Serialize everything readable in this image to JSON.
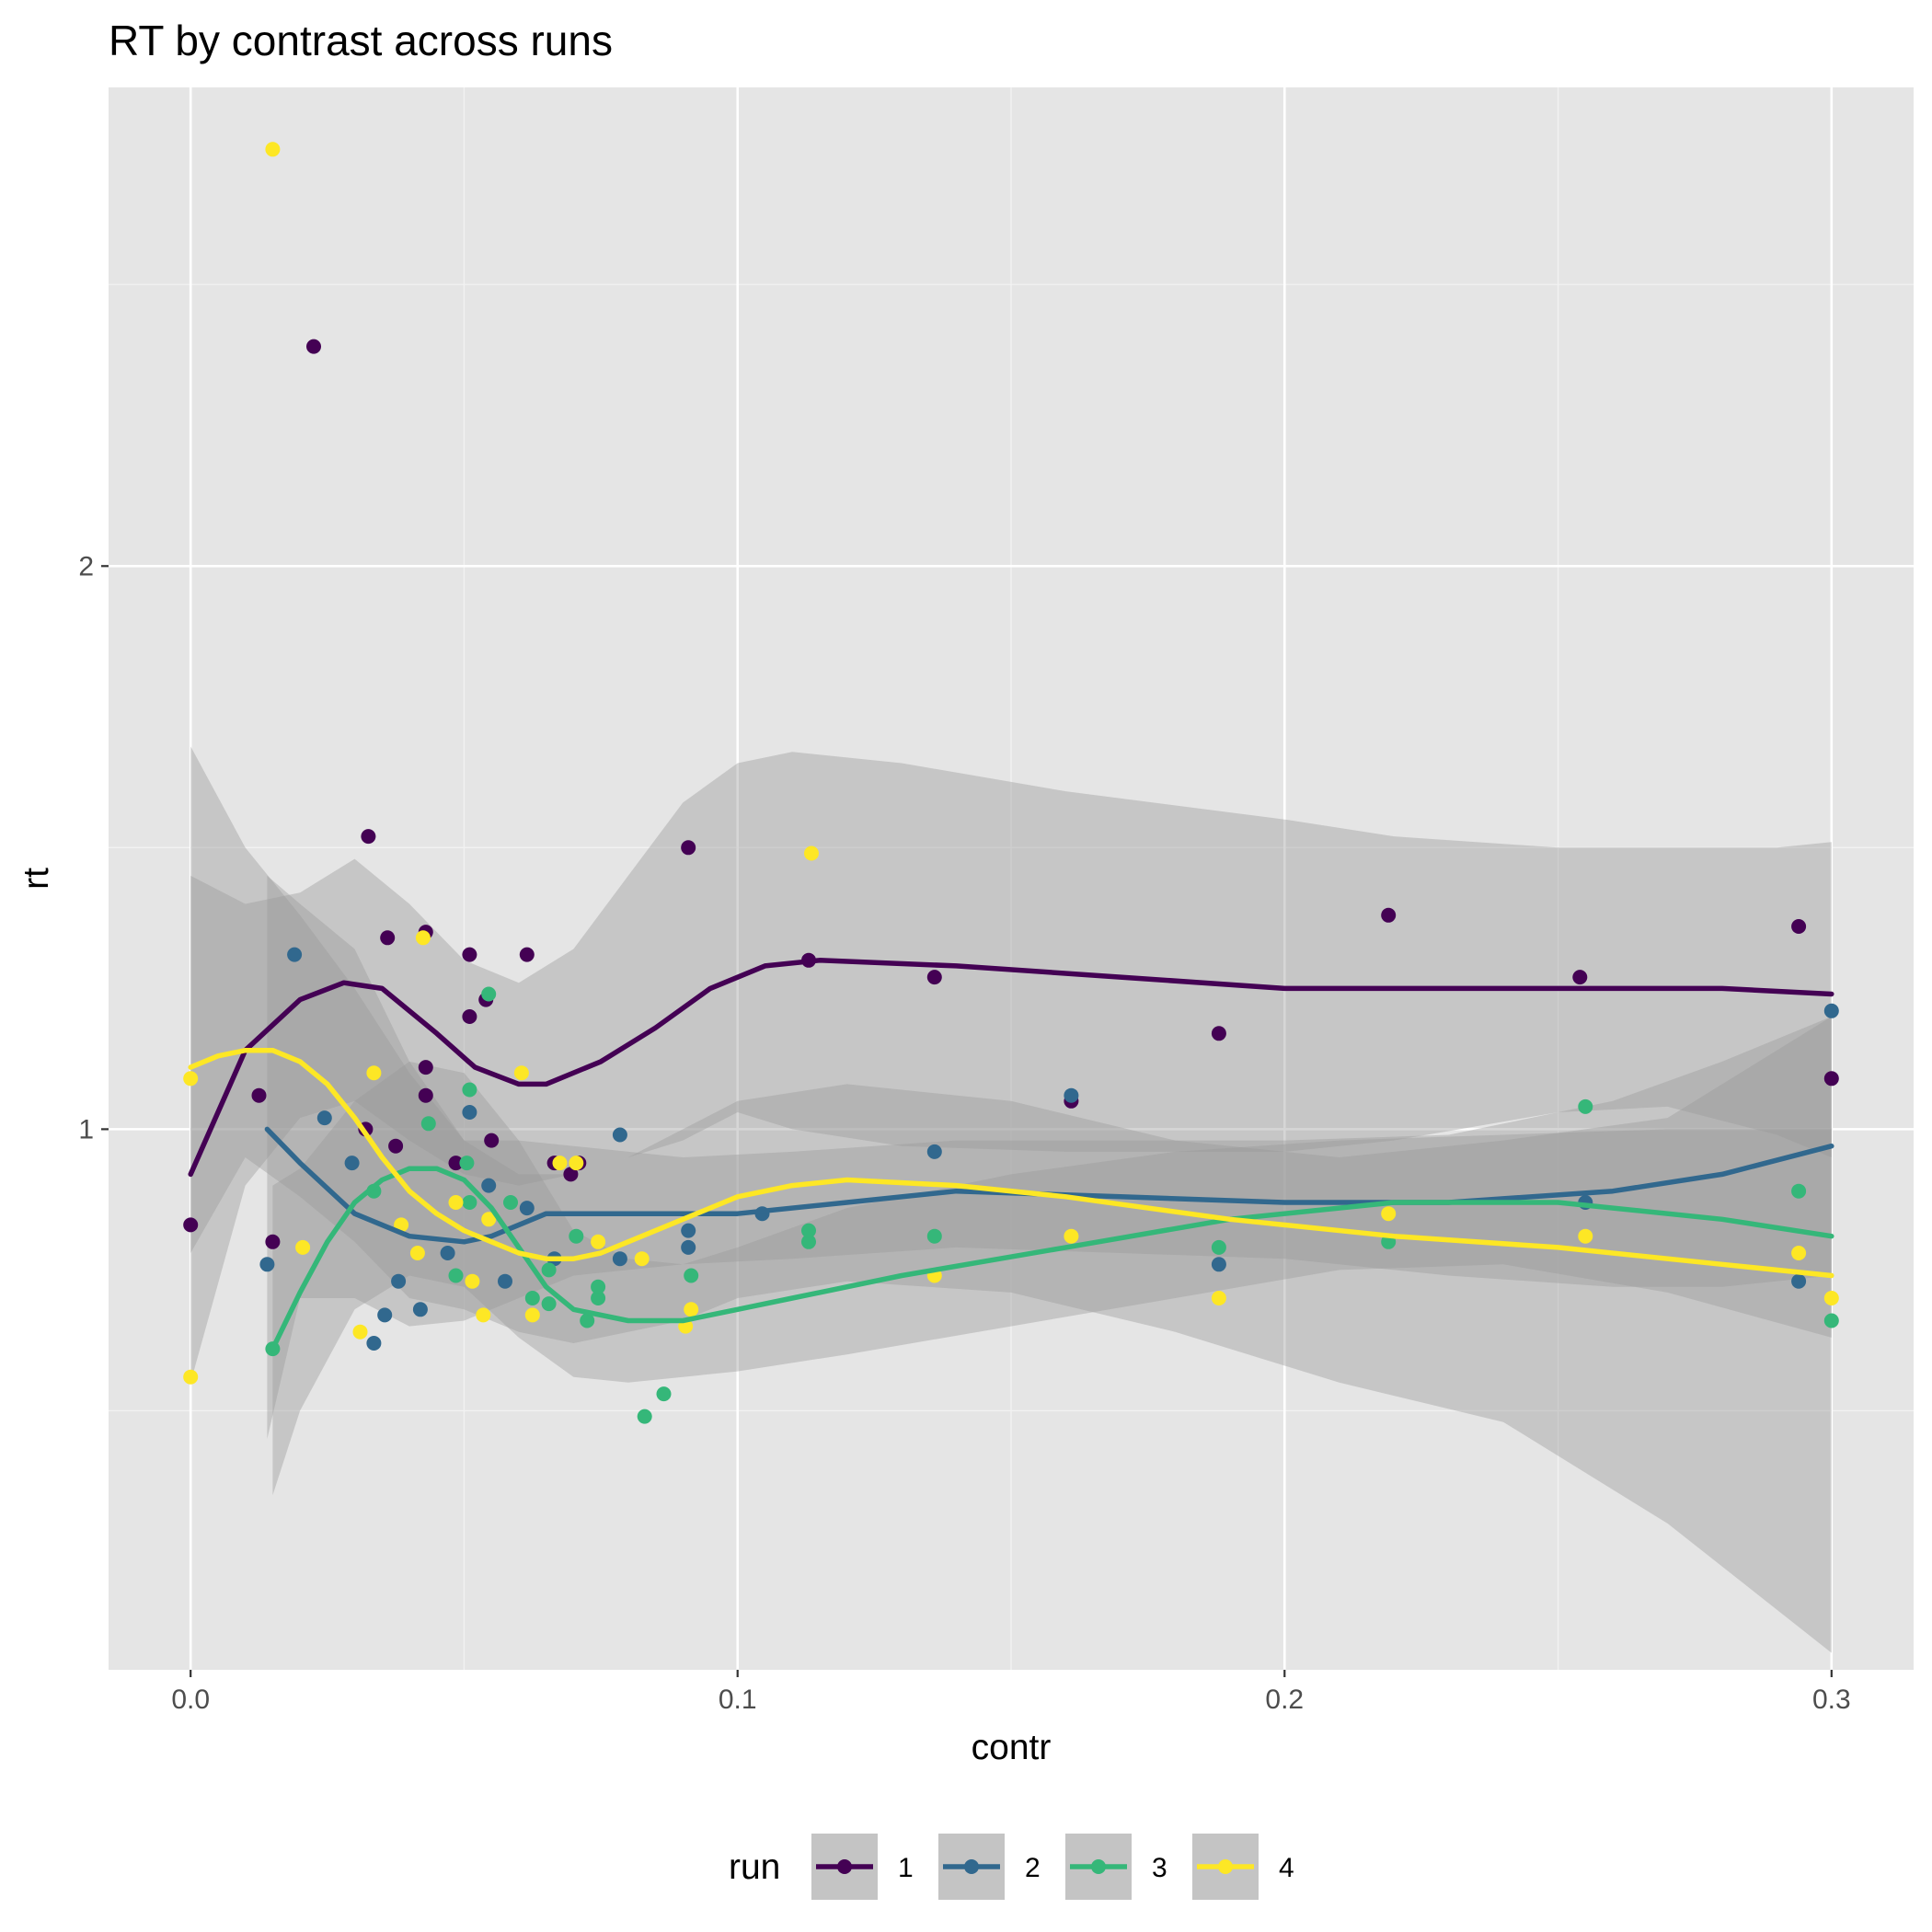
{
  "chart_data": {
    "type": "scatter",
    "title": "RT by contrast across runs",
    "xlabel": "contr",
    "ylabel": "rt",
    "xlim": [
      -0.015,
      0.315
    ],
    "ylim": [
      0.04,
      2.85
    ],
    "x_ticks": [
      {
        "value": 0.0,
        "label": "0.0"
      },
      {
        "value": 0.1,
        "label": "0.1"
      },
      {
        "value": 0.2,
        "label": "0.2"
      },
      {
        "value": 0.3,
        "label": "0.3"
      }
    ],
    "x_minor": [
      0.05,
      0.15,
      0.25
    ],
    "y_ticks": [
      {
        "value": 1,
        "label": "1"
      },
      {
        "value": 2,
        "label": "2"
      }
    ],
    "y_minor": [
      0.5,
      1.5,
      2.5
    ],
    "grid": true,
    "legend": {
      "title": "run",
      "position": "bottom"
    },
    "series": [
      {
        "name": "1",
        "color": "#440154",
        "points": [
          [
            0.0,
            0.83
          ],
          [
            0.0125,
            1.06
          ],
          [
            0.015,
            0.8
          ],
          [
            0.0225,
            2.39
          ],
          [
            0.032,
            1.0
          ],
          [
            0.0325,
            1.52
          ],
          [
            0.036,
            1.34
          ],
          [
            0.0375,
            0.97
          ],
          [
            0.043,
            1.11
          ],
          [
            0.043,
            1.06
          ],
          [
            0.043,
            1.35
          ],
          [
            0.0485,
            0.94
          ],
          [
            0.051,
            1.31
          ],
          [
            0.051,
            1.2
          ],
          [
            0.054,
            1.23
          ],
          [
            0.055,
            0.98
          ],
          [
            0.0615,
            1.31
          ],
          [
            0.0665,
            0.94
          ],
          [
            0.0695,
            0.92
          ],
          [
            0.071,
            0.94
          ],
          [
            0.091,
            1.5
          ],
          [
            0.113,
            1.3
          ],
          [
            0.136,
            1.27
          ],
          [
            0.161,
            1.05
          ],
          [
            0.188,
            1.17
          ],
          [
            0.219,
            1.38
          ],
          [
            0.254,
            1.27
          ],
          [
            0.294,
            1.36
          ],
          [
            0.3,
            1.09
          ]
        ],
        "smooth": [
          [
            0.0,
            0.92
          ],
          [
            0.01,
            1.14
          ],
          [
            0.02,
            1.23
          ],
          [
            0.028,
            1.26
          ],
          [
            0.035,
            1.25
          ],
          [
            0.045,
            1.17
          ],
          [
            0.052,
            1.11
          ],
          [
            0.06,
            1.08
          ],
          [
            0.065,
            1.08
          ],
          [
            0.075,
            1.12
          ],
          [
            0.085,
            1.18
          ],
          [
            0.095,
            1.25
          ],
          [
            0.105,
            1.29
          ],
          [
            0.115,
            1.3
          ],
          [
            0.14,
            1.29
          ],
          [
            0.17,
            1.27
          ],
          [
            0.2,
            1.25
          ],
          [
            0.22,
            1.25
          ],
          [
            0.25,
            1.25
          ],
          [
            0.28,
            1.25
          ],
          [
            0.3,
            1.24
          ]
        ],
        "band": [
          [
            0.0,
            0.55,
            1.45
          ],
          [
            0.01,
            0.9,
            1.4
          ],
          [
            0.02,
            1.02,
            1.42
          ],
          [
            0.03,
            1.05,
            1.48
          ],
          [
            0.04,
            0.98,
            1.4
          ],
          [
            0.05,
            0.92,
            1.3
          ],
          [
            0.06,
            0.9,
            1.26
          ],
          [
            0.07,
            0.92,
            1.32
          ],
          [
            0.08,
            0.95,
            1.45
          ],
          [
            0.09,
            0.98,
            1.58
          ],
          [
            0.1,
            1.03,
            1.65
          ],
          [
            0.11,
            1.0,
            1.67
          ],
          [
            0.13,
            0.97,
            1.65
          ],
          [
            0.16,
            0.96,
            1.6
          ],
          [
            0.2,
            0.96,
            1.55
          ],
          [
            0.22,
            0.98,
            1.52
          ],
          [
            0.25,
            1.03,
            1.5
          ],
          [
            0.27,
            1.04,
            1.5
          ],
          [
            0.29,
            0.99,
            1.5
          ],
          [
            0.3,
            0.95,
            1.51
          ]
        ]
      },
      {
        "name": "2",
        "color": "#31688e",
        "points": [
          [
            0.014,
            0.76
          ],
          [
            0.019,
            1.31
          ],
          [
            0.0245,
            1.02
          ],
          [
            0.0295,
            0.94
          ],
          [
            0.0335,
            0.62
          ],
          [
            0.0355,
            0.67
          ],
          [
            0.038,
            0.73
          ],
          [
            0.042,
            0.68
          ],
          [
            0.047,
            0.78
          ],
          [
            0.051,
            1.03
          ],
          [
            0.0545,
            0.9
          ],
          [
            0.0575,
            0.73
          ],
          [
            0.0615,
            0.86
          ],
          [
            0.0665,
            0.77
          ],
          [
            0.0785,
            0.77
          ],
          [
            0.0785,
            0.99
          ],
          [
            0.091,
            0.79
          ],
          [
            0.091,
            0.82
          ],
          [
            0.1045,
            0.85
          ],
          [
            0.136,
            0.96
          ],
          [
            0.161,
            1.06
          ],
          [
            0.188,
            0.76
          ],
          [
            0.255,
            0.87
          ],
          [
            0.294,
            0.73
          ],
          [
            0.3,
            1.21
          ]
        ],
        "smooth": [
          [
            0.014,
            1.0
          ],
          [
            0.02,
            0.94
          ],
          [
            0.03,
            0.85
          ],
          [
            0.04,
            0.81
          ],
          [
            0.05,
            0.8
          ],
          [
            0.055,
            0.81
          ],
          [
            0.065,
            0.85
          ],
          [
            0.08,
            0.85
          ],
          [
            0.1,
            0.85
          ],
          [
            0.12,
            0.87
          ],
          [
            0.14,
            0.89
          ],
          [
            0.17,
            0.88
          ],
          [
            0.2,
            0.87
          ],
          [
            0.23,
            0.87
          ],
          [
            0.26,
            0.89
          ],
          [
            0.28,
            0.92
          ],
          [
            0.3,
            0.97
          ]
        ],
        "band": [
          [
            0.014,
            0.45,
            1.45
          ],
          [
            0.02,
            0.7,
            1.4
          ],
          [
            0.03,
            0.7,
            1.32
          ],
          [
            0.04,
            0.65,
            1.12
          ],
          [
            0.05,
            0.66,
            0.98
          ],
          [
            0.06,
            0.7,
            0.98
          ],
          [
            0.07,
            0.74,
            0.97
          ],
          [
            0.09,
            0.76,
            0.95
          ],
          [
            0.11,
            0.77,
            0.96
          ],
          [
            0.14,
            0.79,
            0.98
          ],
          [
            0.17,
            0.78,
            0.98
          ],
          [
            0.2,
            0.77,
            0.98
          ],
          [
            0.23,
            0.74,
            0.99
          ],
          [
            0.26,
            0.72,
            1.05
          ],
          [
            0.28,
            0.72,
            1.12
          ],
          [
            0.3,
            0.74,
            1.2
          ]
        ]
      },
      {
        "name": "3",
        "color": "#35b779",
        "points": [
          [
            0.015,
            0.61
          ],
          [
            0.0335,
            0.89
          ],
          [
            0.0435,
            1.01
          ],
          [
            0.0485,
            0.74
          ],
          [
            0.0505,
            0.94
          ],
          [
            0.051,
            1.07
          ],
          [
            0.051,
            0.87
          ],
          [
            0.0545,
            1.24
          ],
          [
            0.0585,
            0.87
          ],
          [
            0.0625,
            0.7
          ],
          [
            0.0655,
            0.69
          ],
          [
            0.0655,
            0.75
          ],
          [
            0.0705,
            0.81
          ],
          [
            0.0725,
            0.66
          ],
          [
            0.0745,
            0.7
          ],
          [
            0.0745,
            0.72
          ],
          [
            0.083,
            0.49
          ],
          [
            0.0865,
            0.53
          ],
          [
            0.0915,
            0.74
          ],
          [
            0.113,
            0.8
          ],
          [
            0.113,
            0.82
          ],
          [
            0.136,
            0.81
          ],
          [
            0.188,
            0.79
          ],
          [
            0.219,
            0.8
          ],
          [
            0.255,
            1.04
          ],
          [
            0.294,
            0.89
          ],
          [
            0.3,
            0.66
          ]
        ],
        "smooth": [
          [
            0.015,
            0.61
          ],
          [
            0.02,
            0.71
          ],
          [
            0.025,
            0.8
          ],
          [
            0.03,
            0.87
          ],
          [
            0.035,
            0.91
          ],
          [
            0.04,
            0.93
          ],
          [
            0.045,
            0.93
          ],
          [
            0.05,
            0.91
          ],
          [
            0.055,
            0.86
          ],
          [
            0.06,
            0.79
          ],
          [
            0.065,
            0.72
          ],
          [
            0.07,
            0.68
          ],
          [
            0.08,
            0.66
          ],
          [
            0.09,
            0.66
          ],
          [
            0.1,
            0.68
          ],
          [
            0.11,
            0.7
          ],
          [
            0.13,
            0.74
          ],
          [
            0.16,
            0.79
          ],
          [
            0.19,
            0.84
          ],
          [
            0.22,
            0.87
          ],
          [
            0.25,
            0.87
          ],
          [
            0.28,
            0.84
          ],
          [
            0.3,
            0.81
          ]
        ],
        "band": [
          [
            0.015,
            0.35,
            0.9
          ],
          [
            0.02,
            0.5,
            0.93
          ],
          [
            0.03,
            0.68,
            1.05
          ],
          [
            0.04,
            0.74,
            1.12
          ],
          [
            0.05,
            0.72,
            1.1
          ],
          [
            0.06,
            0.63,
            0.98
          ],
          [
            0.07,
            0.56,
            0.82
          ],
          [
            0.08,
            0.55,
            0.77
          ],
          [
            0.09,
            0.56,
            0.76
          ],
          [
            0.1,
            0.57,
            0.79
          ],
          [
            0.12,
            0.6,
            0.86
          ],
          [
            0.15,
            0.65,
            0.92
          ],
          [
            0.18,
            0.7,
            0.96
          ],
          [
            0.21,
            0.75,
            0.98
          ],
          [
            0.24,
            0.76,
            0.99
          ],
          [
            0.27,
            0.71,
            1.0
          ],
          [
            0.3,
            0.63,
            1.0
          ]
        ]
      },
      {
        "name": "4",
        "color": "#fde725",
        "points": [
          [
            0.0,
            1.09
          ],
          [
            0.0,
            0.56
          ],
          [
            0.015,
            2.74
          ],
          [
            0.0205,
            0.79
          ],
          [
            0.031,
            0.64
          ],
          [
            0.0335,
            1.1
          ],
          [
            0.0385,
            0.83
          ],
          [
            0.0415,
            0.78
          ],
          [
            0.0425,
            1.34
          ],
          [
            0.0485,
            0.87
          ],
          [
            0.0515,
            0.73
          ],
          [
            0.0535,
            0.67
          ],
          [
            0.0545,
            0.84
          ],
          [
            0.0605,
            1.1
          ],
          [
            0.0625,
            0.67
          ],
          [
            0.0675,
            0.94
          ],
          [
            0.0705,
            0.94
          ],
          [
            0.0745,
            0.8
          ],
          [
            0.0825,
            0.77
          ],
          [
            0.0905,
            0.65
          ],
          [
            0.0915,
            0.68
          ],
          [
            0.1135,
            1.49
          ],
          [
            0.136,
            0.74
          ],
          [
            0.161,
            0.81
          ],
          [
            0.188,
            0.7
          ],
          [
            0.219,
            0.85
          ],
          [
            0.255,
            0.81
          ],
          [
            0.294,
            0.78
          ],
          [
            0.3,
            0.7
          ]
        ],
        "smooth": [
          [
            0.0,
            1.11
          ],
          [
            0.005,
            1.13
          ],
          [
            0.01,
            1.14
          ],
          [
            0.015,
            1.14
          ],
          [
            0.02,
            1.12
          ],
          [
            0.025,
            1.08
          ],
          [
            0.03,
            1.02
          ],
          [
            0.035,
            0.95
          ],
          [
            0.04,
            0.89
          ],
          [
            0.045,
            0.85
          ],
          [
            0.05,
            0.82
          ],
          [
            0.055,
            0.8
          ],
          [
            0.06,
            0.78
          ],
          [
            0.065,
            0.77
          ],
          [
            0.07,
            0.77
          ],
          [
            0.075,
            0.78
          ],
          [
            0.08,
            0.8
          ],
          [
            0.09,
            0.84
          ],
          [
            0.1,
            0.88
          ],
          [
            0.11,
            0.9
          ],
          [
            0.12,
            0.91
          ],
          [
            0.14,
            0.9
          ],
          [
            0.16,
            0.88
          ],
          [
            0.19,
            0.84
          ],
          [
            0.22,
            0.81
          ],
          [
            0.25,
            0.79
          ],
          [
            0.28,
            0.76
          ],
          [
            0.3,
            0.74
          ]
        ],
        "band": [
          [
            0.0,
            0.78,
            1.68
          ],
          [
            0.01,
            0.95,
            1.5
          ],
          [
            0.02,
            0.88,
            1.38
          ],
          [
            0.03,
            0.8,
            1.25
          ],
          [
            0.04,
            0.7,
            1.1
          ],
          [
            0.05,
            0.68,
            0.98
          ],
          [
            0.06,
            0.64,
            0.92
          ],
          [
            0.07,
            0.62,
            0.92
          ],
          [
            0.08,
            0.64,
            0.95
          ],
          [
            0.09,
            0.66,
            1.0
          ],
          [
            0.1,
            0.7,
            1.05
          ],
          [
            0.12,
            0.73,
            1.08
          ],
          [
            0.15,
            0.71,
            1.05
          ],
          [
            0.18,
            0.64,
            0.98
          ],
          [
            0.21,
            0.55,
            0.95
          ],
          [
            0.24,
            0.48,
            0.98
          ],
          [
            0.27,
            0.3,
            1.02
          ],
          [
            0.3,
            0.07,
            1.2
          ]
        ]
      }
    ]
  }
}
